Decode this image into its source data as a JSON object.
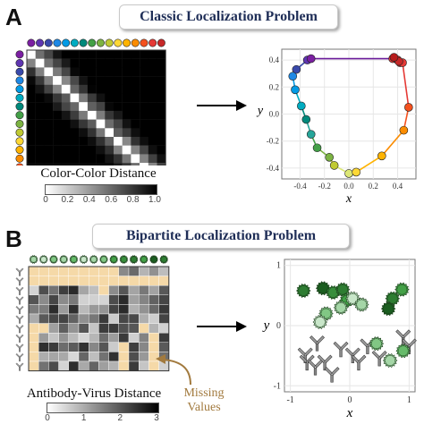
{
  "panel_a": {
    "letter": "A",
    "title": "Classic Localization Problem",
    "matrix_caption": "Color-Color Distance",
    "colorbar_ticks": [
      "0",
      "0.2",
      "0.4",
      "0.6",
      "0.8",
      "1.0"
    ],
    "dot_colors": [
      "#7b1fa2",
      "#5e35b1",
      "#3949ab",
      "#1e88e5",
      "#039be5",
      "#00acc1",
      "#00897b",
      "#43a047",
      "#7cb342",
      "#c0ca33",
      "#fdd835",
      "#ffb300",
      "#fb8c00",
      "#f4511e",
      "#e53935",
      "#c62828"
    ]
  },
  "panel_b": {
    "letter": "B",
    "title": "Bipartite Localization Problem",
    "matrix_caption": "Antibody-Virus Distance",
    "colorbar_ticks": [
      "0",
      "1",
      "2",
      "3"
    ],
    "missing_label_line1": "Missing",
    "missing_label_line2": "Values",
    "missing_color": "#f5d9a8"
  },
  "chart_data": [
    {
      "type": "scatter",
      "xlabel": "x",
      "ylabel": "y",
      "xlim": [
        -0.55,
        0.55
      ],
      "ylim": [
        -0.48,
        0.48
      ],
      "x_ticks": [
        "-0.4",
        "-0.2",
        "0.0",
        "0.2",
        "0.4"
      ],
      "y_ticks": [
        "0.4",
        "0.2",
        "0.0",
        "-0.2",
        "-0.4"
      ],
      "series": [
        {
          "x": [
            -0.43,
            -0.46,
            -0.44,
            -0.39,
            -0.35,
            -0.31,
            -0.26,
            -0.16,
            -0.12,
            0.0,
            0.06,
            0.27,
            0.45,
            0.49,
            0.44,
            0.41,
            0.37
          ],
          "y": [
            0.33,
            0.28,
            0.18,
            0.06,
            -0.04,
            -0.15,
            -0.25,
            -0.32,
            -0.38,
            -0.44,
            -0.43,
            -0.31,
            -0.12,
            0.05,
            0.38,
            0.39,
            0.42
          ],
          "colors": [
            "#3949ab",
            "#1e88e5",
            "#039be5",
            "#00acc1",
            "#00897b",
            "#26a69a",
            "#43a047",
            "#7cb342",
            "#c0ca33",
            "#dce775",
            "#fdd835",
            "#ffb300",
            "#fb8c00",
            "#f4511e",
            "#e53935",
            "#c62828",
            "#b71c1c"
          ]
        }
      ],
      "top_points": {
        "x": [
          -0.34,
          -0.31,
          0.36,
          0.4,
          0.42
        ],
        "y": [
          0.4,
          0.41,
          0.41,
          0.4,
          0.38
        ]
      }
    },
    {
      "type": "scatter",
      "xlabel": "x",
      "ylabel": "y",
      "xlim": [
        -1.1,
        1.1
      ],
      "ylim": [
        -1.1,
        1.1
      ],
      "x_ticks": [
        "-1",
        "0",
        "1"
      ],
      "y_ticks": [
        "1",
        "0",
        "-1"
      ],
      "virus_points": {
        "x": [
          -0.78,
          -0.45,
          -0.28,
          -0.12,
          -0.05,
          -0.15,
          -0.4,
          0.05,
          0.2,
          0.72,
          0.65,
          0.88,
          -0.5,
          0.45,
          0.68,
          0.9
        ],
        "y": [
          0.58,
          0.62,
          0.55,
          0.6,
          0.42,
          0.3,
          0.2,
          0.45,
          0.35,
          0.45,
          0.28,
          0.6,
          0.06,
          -0.3,
          -0.58,
          -0.42
        ],
        "shades": [
          "#2e7d32",
          "#1b5e20",
          "#388e3c",
          "#2e7d32",
          "#43a047",
          "#a5d6a7",
          "#81c784",
          "#c8e6c9",
          "#a5d6a7",
          "#2e7d32",
          "#1b5e20",
          "#43a047",
          "#c8e6c9",
          "#81c784",
          "#a5d6a7",
          "#66bb6a"
        ]
      },
      "antibody_points": {
        "x": [
          -0.55,
          -0.75,
          -0.72,
          -0.58,
          -0.42,
          -0.15,
          0.05,
          0.15,
          0.3,
          0.5,
          0.9,
          1.0,
          -0.3
        ],
        "y": [
          -0.3,
          -0.5,
          -0.62,
          -0.7,
          -0.62,
          -0.4,
          -0.5,
          -0.62,
          -0.35,
          -0.55,
          -0.2,
          -0.35,
          -0.82
        ]
      }
    }
  ]
}
